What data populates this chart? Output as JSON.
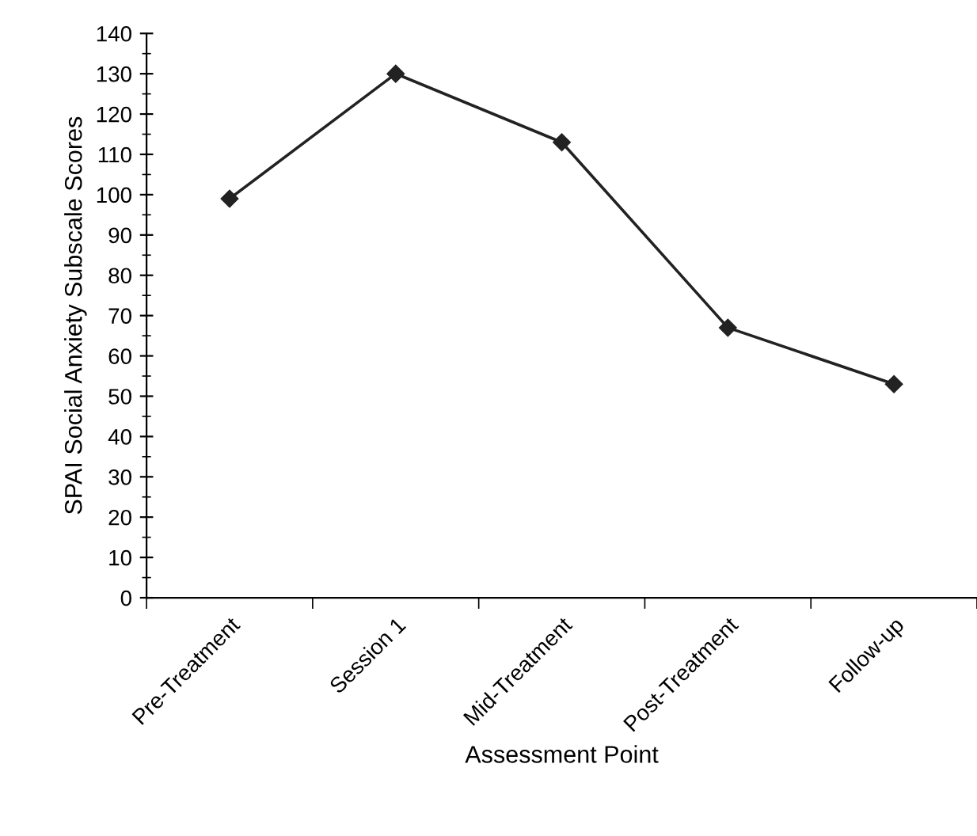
{
  "chart_data": {
    "type": "line",
    "xlabel": "Assessment Point",
    "ylabel": "SPAI Social Anxiety Subscale Scores",
    "categories": [
      "Pre-Treatment",
      "Session 1",
      "Mid-Treatment",
      "Post-Treatment",
      "Follow-up"
    ],
    "series": [
      {
        "color": "#222222",
        "values": [
          99,
          130,
          113,
          67,
          53
        ]
      }
    ],
    "ylim": [
      0,
      140
    ],
    "yticks": [
      0,
      10,
      20,
      30,
      40,
      50,
      60,
      70,
      80,
      90,
      100,
      110,
      120,
      130,
      140
    ],
    "marker": "diamond",
    "line_style": "solid",
    "grid": false,
    "legend": false
  }
}
